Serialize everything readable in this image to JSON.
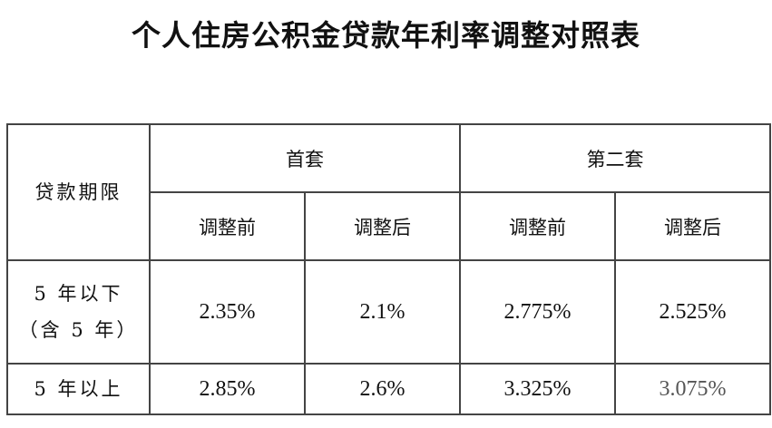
{
  "title": "个人住房公积金贷款年利率调整对照表",
  "table": {
    "term_header": "贷款期限",
    "groups": [
      "首套",
      "第二套"
    ],
    "subheaders": [
      "调整前",
      "调整后",
      "调整前",
      "调整后"
    ],
    "rows": [
      {
        "term_line1": "5 年以下",
        "term_line2": "（含 5 年）",
        "values": [
          "2.35%",
          "2.1%",
          "2.775%",
          "2.525%"
        ]
      },
      {
        "term_line1": "5 年以上",
        "values": [
          "2.85%",
          "2.6%",
          "3.325%",
          "3.075%"
        ]
      }
    ]
  }
}
